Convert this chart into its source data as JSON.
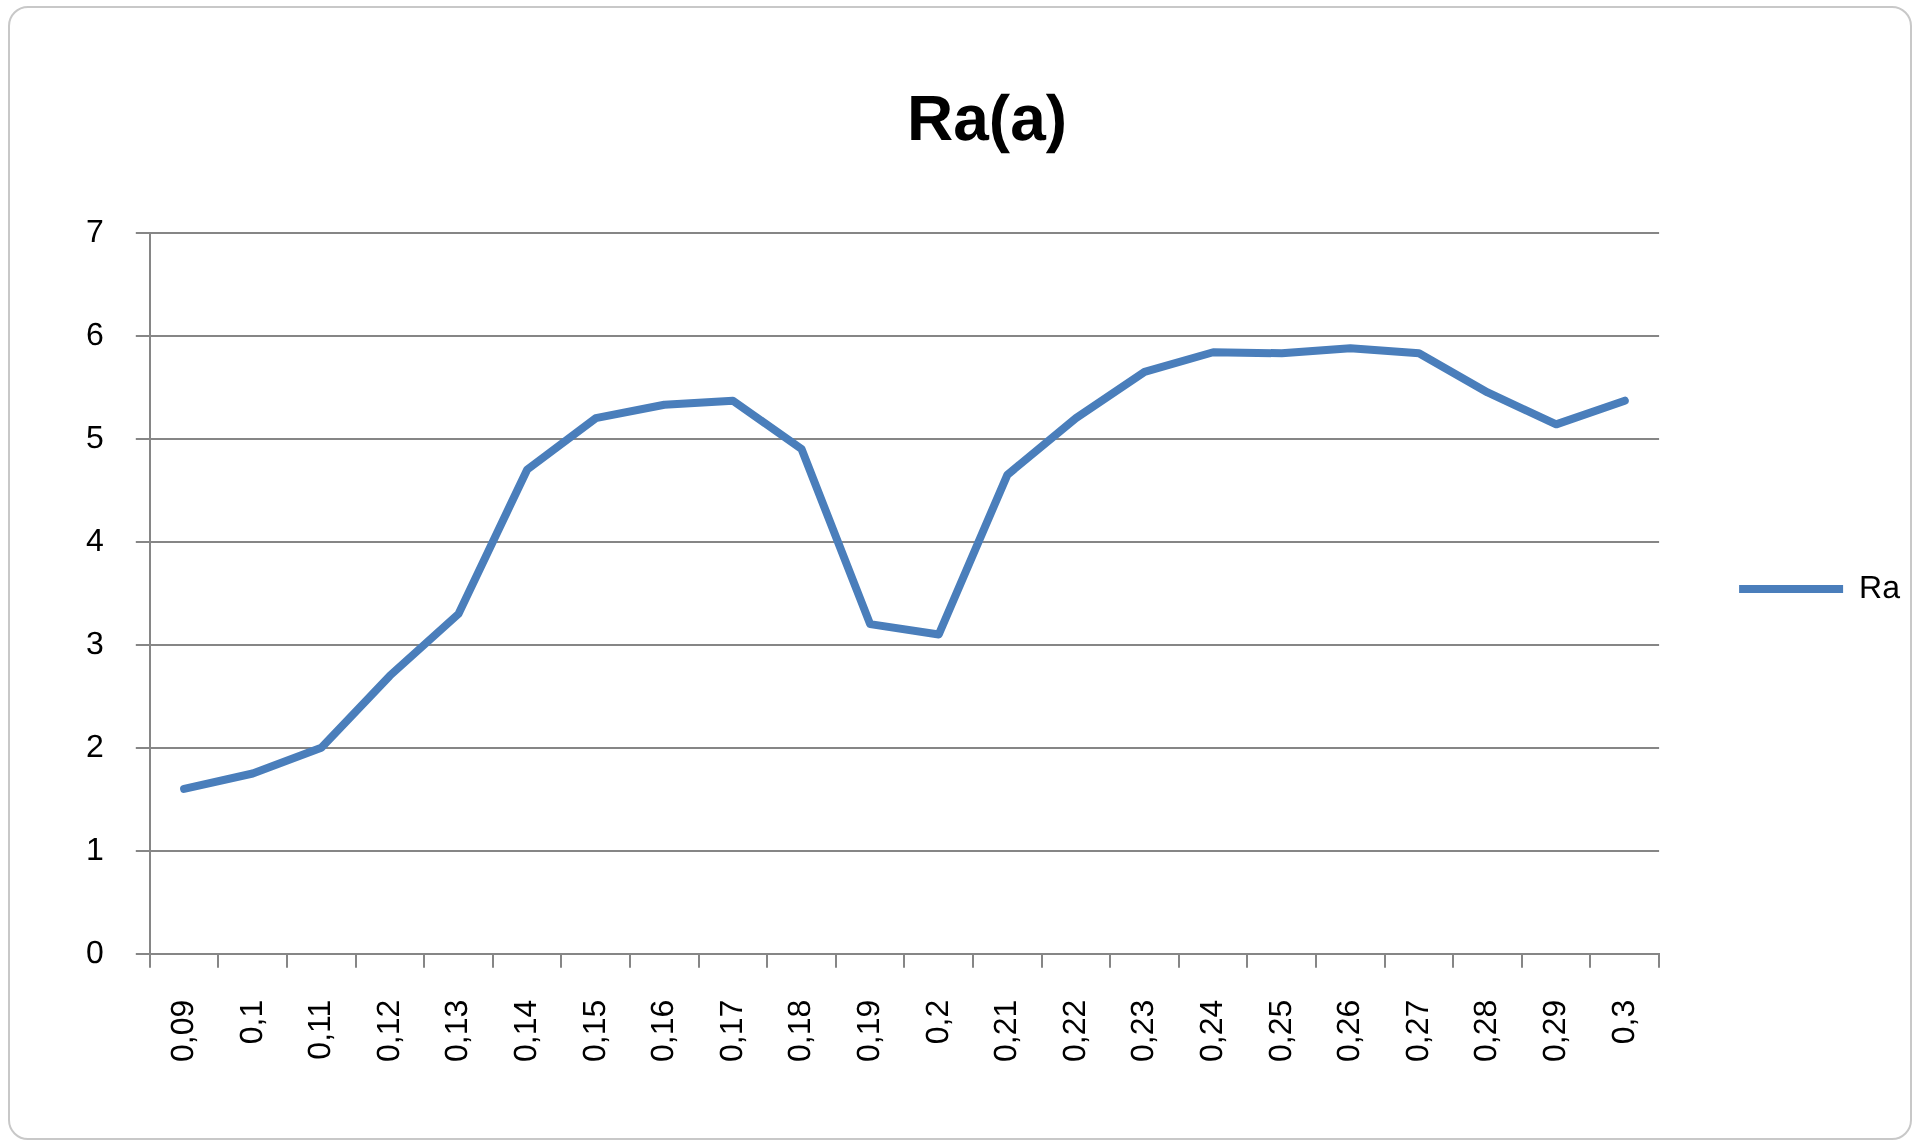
{
  "chart_data": {
    "type": "line",
    "title": "Ra(a)",
    "categories": [
      "0,09",
      "0,1",
      "0,11",
      "0,12",
      "0,13",
      "0,14",
      "0,15",
      "0,16",
      "0,17",
      "0,18",
      "0,19",
      "0,2",
      "0,21",
      "0,22",
      "0,23",
      "0,24",
      "0,25",
      "0,26",
      "0,27",
      "0,28",
      "0,29",
      "0,3"
    ],
    "series": [
      {
        "name": "Ra",
        "color": "#4a7ebb",
        "values": [
          1.6,
          1.75,
          2.0,
          2.7,
          3.3,
          4.7,
          5.2,
          5.33,
          5.37,
          4.9,
          3.2,
          3.1,
          4.65,
          5.2,
          5.65,
          5.84,
          5.83,
          5.88,
          5.83,
          5.45,
          5.14,
          5.37
        ]
      }
    ],
    "ylim": [
      0,
      7
    ],
    "yticks": [
      0,
      1,
      2,
      3,
      4,
      5,
      6,
      7
    ],
    "grid": "y",
    "legend": "right",
    "marker": "none",
    "line_style": "solid"
  }
}
